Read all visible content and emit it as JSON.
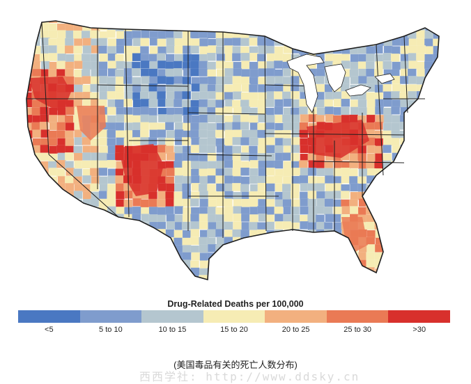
{
  "legend": {
    "title": "Drug-Related Deaths per 100,000",
    "classes": [
      {
        "label": "<5",
        "color": "#4a78c2"
      },
      {
        "label": "5 to 10",
        "color": "#7f9ccd"
      },
      {
        "label": "10 to 15",
        "color": "#b4c6cf"
      },
      {
        "label": "15 to 20",
        "color": "#f6ecb4"
      },
      {
        "label": "20 to 25",
        "color": "#f2b07f"
      },
      {
        "label": "25 to 30",
        "color": "#ea7a55"
      },
      {
        "label": ">30",
        "color": "#d8302c"
      }
    ]
  },
  "caption": "(美国毒品有关的死亡人数分布)",
  "watermark": "西西学社: http://www.ddsky.cn",
  "colors": {
    "state_border": "#1e1e1e",
    "water": "#ffffff",
    "great_lakes": "#ffffff"
  }
}
